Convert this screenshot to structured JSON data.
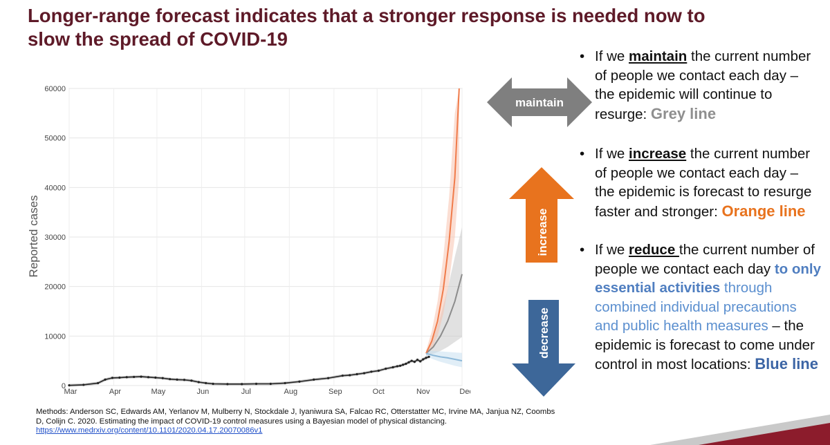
{
  "slide": {
    "title_line1": "Longer-range forecast indicates that a stronger response is needed now to",
    "title_line2": "slow the spread of COVID-19"
  },
  "arrows": {
    "maintain": {
      "label": "maintain",
      "color": "#7f7f7f"
    },
    "increase": {
      "label": "increase",
      "color": "#e8731e"
    },
    "decrease": {
      "label": "decrease",
      "color": "#3d6799"
    }
  },
  "bullets": {
    "marker": "•",
    "maintain": {
      "prefix": "If we ",
      "keyword": "maintain",
      "body": " the current number of people we contact each day – the epidemic will continue to resurge: ",
      "result": "Grey line"
    },
    "increase": {
      "prefix": "If we ",
      "keyword": "increase",
      "body": " the current number of people we contact each day – the epidemic is forecast to resurge faster and stronger: ",
      "result": "Orange line"
    },
    "reduce": {
      "prefix": "If we ",
      "keyword": "reduce ",
      "body": "the current number of people we contact each day ",
      "highlight": "to only essential activities",
      "detail": " through combined individual precautions and public health measures",
      "body2": "  – the epidemic is forecast to come under control in most locations: ",
      "result": "Blue line"
    }
  },
  "methods": {
    "text": "Methods: Anderson SC, Edwards AM, Yerlanov M, Mulberry N, Stockdale J, Iyaniwura SA, Falcao RC, Otterstatter MC, Irvine MA, Janjua NZ, Coombs D, Colijn C. 2020. Estimating the impact of COVID-19 control measures using a Bayesian model of physical distancing.",
    "link": "https://www.medrxiv.org/content/10.1101/2020.04.17.20070086v1"
  },
  "chart_data": {
    "type": "line",
    "title": "",
    "xlabel": "",
    "ylabel": "Reported cases",
    "x_unit": "days since Mar 1, 2020",
    "xlim": [
      0,
      273
    ],
    "ylim": [
      0,
      60000
    ],
    "yticks": [
      0,
      10000,
      20000,
      30000,
      40000,
      50000,
      60000
    ],
    "ytick_labels": [
      "0",
      "10000",
      "20000",
      "30000",
      "40000",
      "50000",
      "60000"
    ],
    "xticks": [
      0,
      31,
      61,
      92,
      122,
      153,
      184,
      214,
      245
    ],
    "xtick_labels": [
      "Mar",
      "Apr",
      "May",
      "Jun",
      "Jul",
      "Aug",
      "Sep",
      "Oct",
      "Nov",
      "Dec"
    ],
    "xtick_values": [
      0,
      31,
      61,
      92,
      122,
      153,
      184,
      214,
      245,
      275
    ],
    "grid": true,
    "observed": {
      "name": "Reported cases",
      "color": "#222222",
      "x": [
        0,
        10,
        20,
        25,
        30,
        35,
        40,
        45,
        50,
        55,
        60,
        65,
        70,
        75,
        80,
        85,
        90,
        95,
        100,
        110,
        120,
        130,
        140,
        150,
        160,
        170,
        180,
        190,
        195,
        200,
        205,
        210,
        215,
        220,
        225,
        228,
        230,
        232,
        234,
        236,
        238,
        240,
        242,
        244,
        246,
        248,
        250
      ],
      "y": [
        50,
        150,
        500,
        1200,
        1550,
        1600,
        1700,
        1750,
        1800,
        1700,
        1600,
        1500,
        1300,
        1200,
        1150,
        1000,
        700,
        500,
        350,
        300,
        300,
        350,
        350,
        500,
        800,
        1200,
        1500,
        2000,
        2100,
        2300,
        2500,
        2800,
        3000,
        3400,
        3700,
        3900,
        4000,
        4200,
        4400,
        4700,
        5000,
        4800,
        5200,
        4900,
        5300,
        5600,
        5800
      ]
    },
    "series": [
      {
        "name": "Grey line",
        "color": "#8c8c8c",
        "band_color": "#c8c8c8",
        "x": [
          248,
          253,
          258,
          263,
          268,
          273
        ],
        "y": [
          6500,
          7800,
          10000,
          13000,
          17000,
          22500
        ],
        "lower": [
          6000,
          6400,
          7000,
          7800,
          8800,
          9800
        ],
        "upper": [
          7000,
          9500,
          14000,
          19500,
          26000,
          32000
        ]
      },
      {
        "name": "Orange line",
        "color": "#f07b4a",
        "band_color": "#f8c3ae",
        "x": [
          248,
          252,
          256,
          260,
          264,
          268,
          271
        ],
        "y": [
          6500,
          9000,
          13000,
          19500,
          29000,
          42000,
          60000
        ],
        "lower": [
          6000,
          7500,
          10000,
          14500,
          21000,
          30000,
          42000
        ],
        "upper": [
          7000,
          11000,
          17000,
          26000,
          38000,
          55000,
          60000
        ]
      },
      {
        "name": "Blue line",
        "color": "#8db8d8",
        "band_color": "#c9e0f0",
        "x": [
          248,
          253,
          258,
          263,
          268,
          273
        ],
        "y": [
          6500,
          6100,
          5800,
          5600,
          5300,
          5000
        ],
        "lower": [
          6000,
          5300,
          4800,
          4400,
          4000,
          3700
        ],
        "upper": [
          7000,
          7000,
          6900,
          6800,
          6700,
          6600
        ]
      }
    ]
  }
}
